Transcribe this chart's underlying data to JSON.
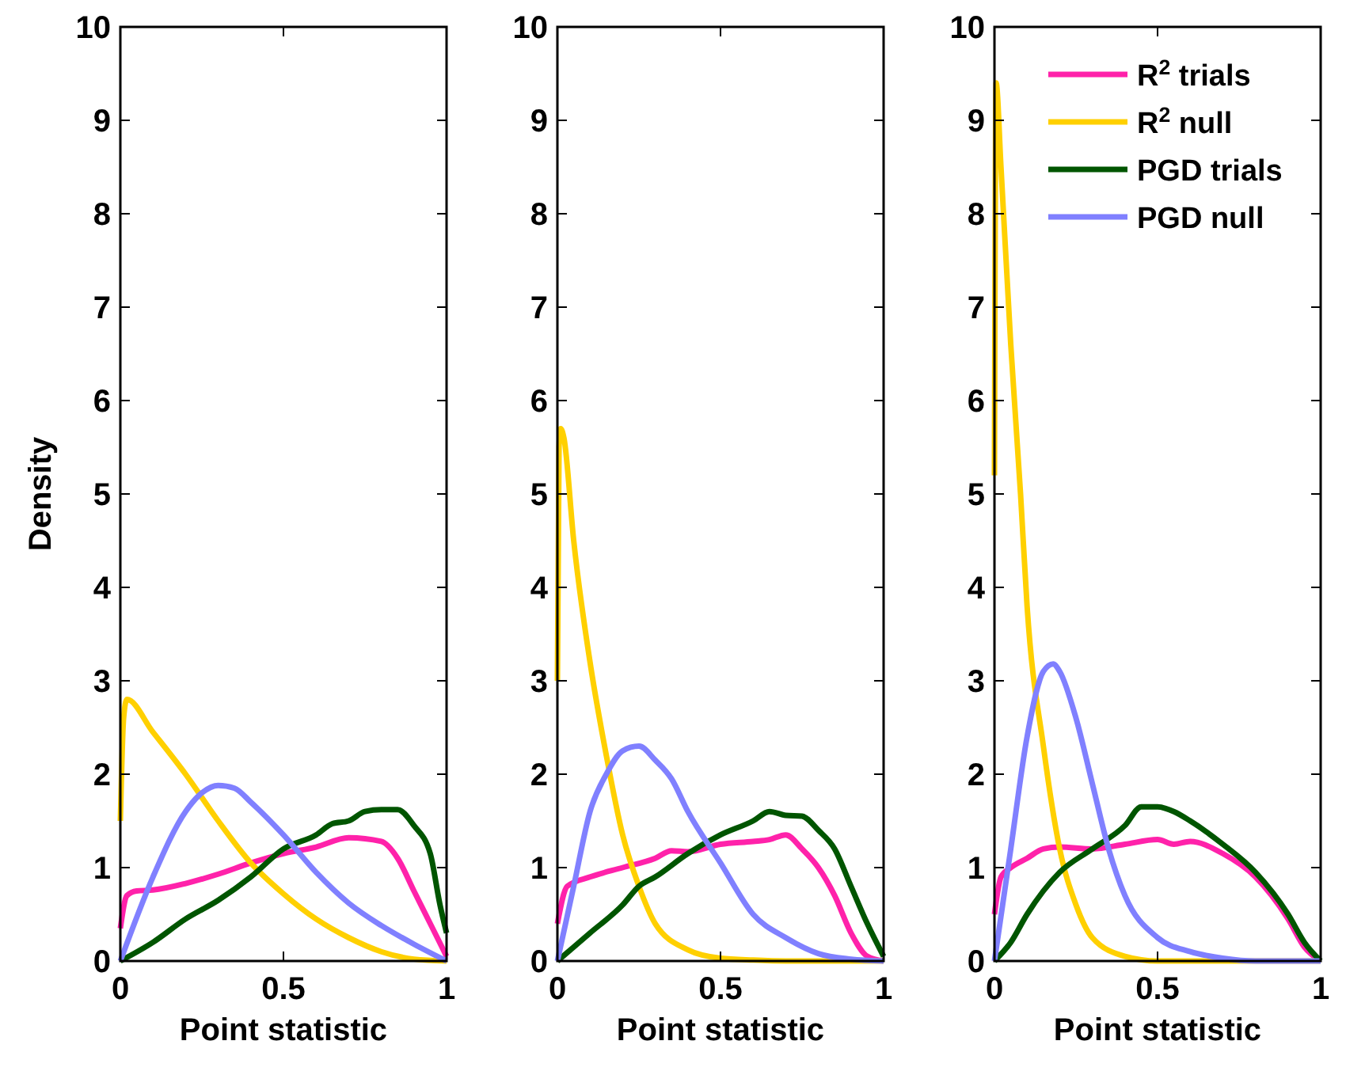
{
  "chart_data": [
    {
      "type": "line",
      "xlabel": "Point statistic",
      "ylabel": "Density",
      "xlim": [
        0,
        1
      ],
      "ylim": [
        0,
        10
      ],
      "xticks": [
        0,
        0.5,
        1
      ],
      "yticks": [
        0,
        1,
        2,
        3,
        4,
        5,
        6,
        7,
        8,
        9,
        10
      ],
      "grid": false,
      "legend": false,
      "series": [
        {
          "color": "#ff22aa",
          "x": [
            0,
            0.02,
            0.05,
            0.1,
            0.2,
            0.3,
            0.4,
            0.5,
            0.6,
            0.7,
            0.8,
            0.85,
            0.9,
            0.95,
            1
          ],
          "values": [
            0.35,
            0.7,
            0.75,
            0.76,
            0.83,
            0.93,
            1.05,
            1.15,
            1.22,
            1.32,
            1.28,
            1.1,
            0.75,
            0.4,
            0.05
          ]
        },
        {
          "color": "#ffd000",
          "x": [
            0,
            0.01,
            0.02,
            0.1,
            0.2,
            0.3,
            0.4,
            0.5,
            0.6,
            0.7,
            0.8,
            0.9,
            1
          ],
          "values": [
            1.5,
            2.6,
            2.8,
            2.45,
            2.0,
            1.5,
            1.05,
            0.72,
            0.45,
            0.25,
            0.1,
            0.02,
            0
          ]
        },
        {
          "color": "#005500",
          "x": [
            0,
            0.1,
            0.2,
            0.3,
            0.4,
            0.5,
            0.6,
            0.65,
            0.7,
            0.75,
            0.8,
            0.85,
            0.9,
            0.95,
            0.98,
            1
          ],
          "values": [
            0,
            0.2,
            0.45,
            0.65,
            0.9,
            1.2,
            1.35,
            1.47,
            1.5,
            1.6,
            1.62,
            1.62,
            1.45,
            1.15,
            0.6,
            0.3
          ]
        },
        {
          "color": "#8080ff",
          "x": [
            0,
            0.1,
            0.2,
            0.25,
            0.3,
            0.35,
            0.4,
            0.5,
            0.6,
            0.7,
            0.8,
            0.9,
            1
          ],
          "values": [
            0,
            0.9,
            1.6,
            1.8,
            1.88,
            1.85,
            1.7,
            1.35,
            0.95,
            0.62,
            0.38,
            0.18,
            0
          ]
        }
      ]
    },
    {
      "type": "line",
      "xlabel": "Point statistic",
      "xlim": [
        0,
        1
      ],
      "ylim": [
        0,
        10
      ],
      "xticks": [
        0,
        0.5,
        1
      ],
      "yticks": [
        0,
        1,
        2,
        3,
        4,
        5,
        6,
        7,
        8,
        9,
        10
      ],
      "grid": false,
      "legend": false,
      "series": [
        {
          "color": "#ff22aa",
          "x": [
            0,
            0.03,
            0.1,
            0.2,
            0.3,
            0.35,
            0.4,
            0.5,
            0.6,
            0.65,
            0.7,
            0.75,
            0.8,
            0.85,
            0.9,
            0.95,
            1
          ],
          "values": [
            0.4,
            0.8,
            0.9,
            1.0,
            1.1,
            1.18,
            1.17,
            1.25,
            1.28,
            1.3,
            1.35,
            1.2,
            1.0,
            0.7,
            0.3,
            0.05,
            0
          ]
        },
        {
          "color": "#ffd000",
          "x": [
            0,
            0.005,
            0.01,
            0.02,
            0.05,
            0.1,
            0.15,
            0.2,
            0.25,
            0.3,
            0.4,
            0.5,
            0.6,
            0.7,
            1
          ],
          "values": [
            3.0,
            5.5,
            5.7,
            5.6,
            4.5,
            3.2,
            2.2,
            1.35,
            0.8,
            0.4,
            0.12,
            0.03,
            0.01,
            0,
            0
          ]
        },
        {
          "color": "#005500",
          "x": [
            0,
            0.1,
            0.2,
            0.25,
            0.3,
            0.4,
            0.5,
            0.6,
            0.65,
            0.7,
            0.75,
            0.8,
            0.85,
            0.9,
            0.95,
            1
          ],
          "values": [
            0,
            0.3,
            0.6,
            0.8,
            0.9,
            1.15,
            1.35,
            1.5,
            1.6,
            1.56,
            1.55,
            1.4,
            1.2,
            0.8,
            0.4,
            0.05
          ]
        },
        {
          "color": "#8080ff",
          "x": [
            0,
            0.05,
            0.1,
            0.15,
            0.2,
            0.25,
            0.3,
            0.35,
            0.4,
            0.5,
            0.6,
            0.7,
            0.8,
            0.9,
            1
          ],
          "values": [
            0,
            0.8,
            1.6,
            2.0,
            2.25,
            2.3,
            2.15,
            1.95,
            1.6,
            1.05,
            0.5,
            0.25,
            0.08,
            0.02,
            0
          ]
        }
      ]
    },
    {
      "type": "line",
      "xlabel": "Point statistic",
      "xlim": [
        0,
        1
      ],
      "ylim": [
        0,
        10
      ],
      "xticks": [
        0,
        0.5,
        1
      ],
      "yticks": [
        0,
        1,
        2,
        3,
        4,
        5,
        6,
        7,
        8,
        9,
        10
      ],
      "grid": false,
      "legend": "top right",
      "series": [
        {
          "name": "R$^{2}$ trials",
          "color": "#ff22aa",
          "x": [
            0,
            0.02,
            0.05,
            0.1,
            0.15,
            0.2,
            0.3,
            0.4,
            0.5,
            0.55,
            0.6,
            0.7,
            0.8,
            0.85,
            0.9,
            0.95,
            1
          ],
          "values": [
            0.5,
            0.9,
            1.0,
            1.1,
            1.2,
            1.22,
            1.2,
            1.25,
            1.3,
            1.25,
            1.28,
            1.15,
            0.9,
            0.7,
            0.45,
            0.15,
            0
          ]
        },
        {
          "name": "R$^{2}$ null",
          "color": "#ffd000",
          "x": [
            0,
            0.005,
            0.02,
            0.05,
            0.08,
            0.1,
            0.15,
            0.2,
            0.25,
            0.3,
            0.4,
            0.5,
            1
          ],
          "values": [
            5.2,
            9.4,
            8.5,
            6.6,
            5.0,
            3.8,
            2.3,
            1.2,
            0.6,
            0.25,
            0.05,
            0,
            0
          ]
        },
        {
          "name": "PGD trials",
          "color": "#005500",
          "x": [
            0,
            0.05,
            0.1,
            0.2,
            0.3,
            0.4,
            0.45,
            0.5,
            0.55,
            0.6,
            0.7,
            0.8,
            0.9,
            0.95,
            1
          ],
          "values": [
            0,
            0.2,
            0.5,
            0.95,
            1.2,
            1.45,
            1.65,
            1.65,
            1.6,
            1.5,
            1.25,
            0.95,
            0.5,
            0.2,
            0
          ]
        },
        {
          "name": "PGD null",
          "color": "#8080ff",
          "x": [
            0,
            0.05,
            0.1,
            0.15,
            0.18,
            0.2,
            0.25,
            0.3,
            0.35,
            0.4,
            0.5,
            0.6,
            0.7,
            0.8,
            1
          ],
          "values": [
            0,
            1.2,
            2.4,
            3.1,
            3.18,
            3.1,
            2.6,
            1.9,
            1.2,
            0.7,
            0.25,
            0.1,
            0.03,
            0,
            0
          ]
        }
      ]
    }
  ]
}
